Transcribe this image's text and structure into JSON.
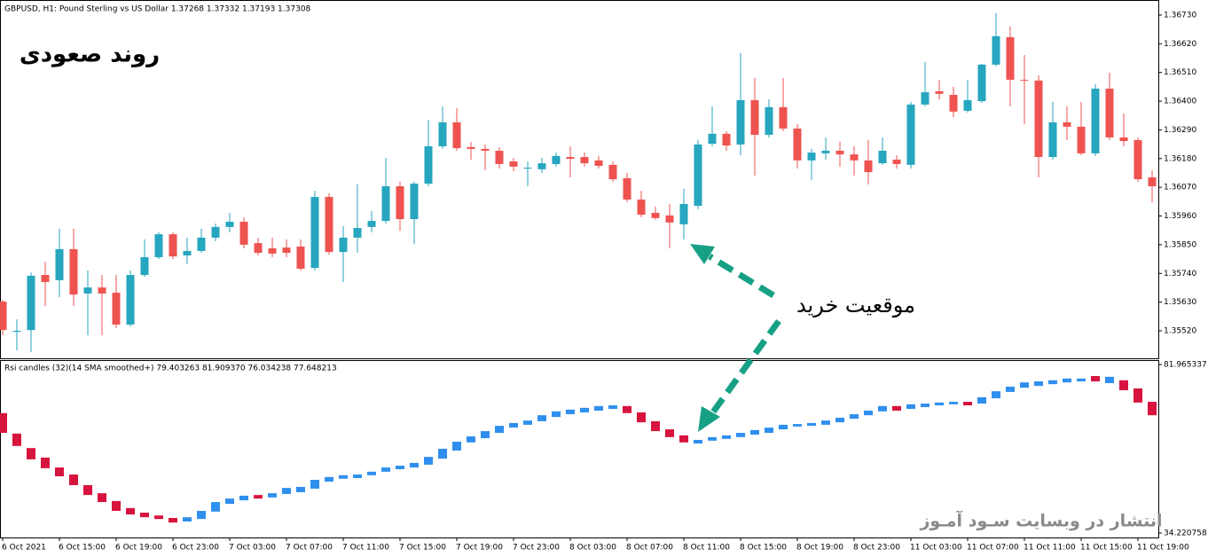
{
  "chart_data": [
    {
      "type": "candlestick",
      "title": "GBPUSD, H1:  Pound Sterling vs US Dollar  1.37268 1.37332 1.37193 1.37308",
      "annotations": [
        "روند صعودی",
        "موقعیت خرید"
      ],
      "up_color": "#26a6bf",
      "down_color": "#ef5350",
      "ylim": [
        1.35418,
        1.36774
      ],
      "yticks": [
        {
          "value": 1.3673,
          "label": "1.36730"
        },
        {
          "value": 1.3662,
          "label": "1.36620"
        },
        {
          "value": 1.3651,
          "label": "1.36510"
        },
        {
          "value": 1.364,
          "label": "1.36400"
        },
        {
          "value": 1.3629,
          "label": "1.36290"
        },
        {
          "value": 1.3618,
          "label": "1.36180"
        },
        {
          "value": 1.3607,
          "label": "1.36070"
        },
        {
          "value": 1.3596,
          "label": "1.35960"
        },
        {
          "value": 1.3585,
          "label": "1.35850"
        },
        {
          "value": 1.3574,
          "label": "1.35740"
        },
        {
          "value": 1.3563,
          "label": "1.35630"
        },
        {
          "value": 1.3552,
          "label": "1.35520"
        }
      ],
      "open": [
        1.35632,
        1.35516,
        1.35523,
        1.35734,
        1.35714,
        1.35833,
        1.35663,
        1.35686,
        1.35666,
        1.35544,
        1.35734,
        1.35802,
        1.3589,
        1.35809,
        1.35826,
        1.35877,
        1.35918,
        1.35938,
        1.35856,
        1.35836,
        1.35839,
        1.35843,
        1.35761,
        1.36033,
        1.35822,
        1.35877,
        1.35918,
        1.35941,
        1.36074,
        1.35948,
        1.36084,
        1.36227,
        1.36319,
        1.36224,
        1.36217,
        1.3621,
        1.36169,
        1.36142,
        1.36139,
        1.36159,
        1.36186,
        1.36186,
        1.36173,
        1.36156,
        1.36105,
        1.36023,
        1.35972,
        1.35962,
        1.35928,
        1.35999,
        1.36237,
        1.36275,
        1.36234,
        1.36404,
        1.36271,
        1.36377,
        1.36295,
        1.36173,
        1.362,
        1.3621,
        1.36196,
        1.36173,
        1.36162,
        1.36176,
        1.36156,
        1.36387,
        1.36438,
        1.36424,
        1.36363,
        1.364,
        1.3654,
        1.36645,
        1.36482,
        1.36479,
        1.36186,
        1.36319,
        1.36302,
        1.362,
        1.36448,
        1.36261,
        1.36251,
        1.36108
      ],
      "high": [
        1.35639,
        1.35564,
        1.35744,
        1.35785,
        1.35911,
        1.35911,
        1.35751,
        1.35734,
        1.35734,
        1.35751,
        1.3587,
        1.35897,
        1.35897,
        1.35877,
        1.35911,
        1.35931,
        1.35972,
        1.35955,
        1.35877,
        1.35877,
        1.3587,
        1.3587,
        1.36057,
        1.36047,
        1.35921,
        1.36081,
        1.35979,
        1.36183,
        1.36091,
        1.36091,
        1.36329,
        1.3638,
        1.36373,
        1.36244,
        1.36234,
        1.36224,
        1.36183,
        1.36169,
        1.36183,
        1.36203,
        1.36227,
        1.36203,
        1.3619,
        1.36169,
        1.36125,
        1.36057,
        1.35996,
        1.36006,
        1.36064,
        1.36251,
        1.3638,
        1.36285,
        1.36584,
        1.36489,
        1.36407,
        1.36489,
        1.36312,
        1.36217,
        1.36261,
        1.36244,
        1.36227,
        1.36251,
        1.36261,
        1.36193,
        1.36397,
        1.3655,
        1.36482,
        1.36455,
        1.36482,
        1.36543,
        1.36737,
        1.36686,
        1.36577,
        1.36499,
        1.36397,
        1.3638,
        1.36397,
        1.36465,
        1.36509,
        1.36353,
        1.36261,
        1.36135
      ],
      "low": [
        1.35503,
        1.35445,
        1.35438,
        1.35615,
        1.35649,
        1.35615,
        1.35503,
        1.35503,
        1.3553,
        1.35537,
        1.35727,
        1.35795,
        1.35795,
        1.35775,
        1.35819,
        1.35863,
        1.35897,
        1.35836,
        1.35809,
        1.35802,
        1.35802,
        1.35751,
        1.35751,
        1.35812,
        1.35707,
        1.35819,
        1.35897,
        1.35931,
        1.35904,
        1.35853,
        1.36074,
        1.36217,
        1.3621,
        1.36176,
        1.36135,
        1.36142,
        1.36132,
        1.36074,
        1.36125,
        1.36149,
        1.36108,
        1.36149,
        1.36142,
        1.36091,
        1.36013,
        1.35955,
        1.35945,
        1.35836,
        1.3587,
        1.35986,
        1.36227,
        1.3621,
        1.36193,
        1.36115,
        1.36261,
        1.36285,
        1.36142,
        1.36098,
        1.36176,
        1.36149,
        1.36115,
        1.36081,
        1.36156,
        1.36142,
        1.36142,
        1.3638,
        1.36407,
        1.36339,
        1.36356,
        1.36394,
        1.36533,
        1.3638,
        1.36312,
        1.36108,
        1.36176,
        1.36251,
        1.36193,
        1.3619,
        1.36251,
        1.36227,
        1.36091,
        1.36013
      ],
      "close": [
        1.35523,
        1.3552,
        1.35731,
        1.35707,
        1.35833,
        1.35659,
        1.35686,
        1.35663,
        1.35544,
        1.35734,
        1.35802,
        1.3589,
        1.35805,
        1.35826,
        1.35877,
        1.35918,
        1.35938,
        1.3585,
        1.35819,
        1.35816,
        1.35819,
        1.35758,
        1.36033,
        1.35822,
        1.35877,
        1.35914,
        1.35941,
        1.36074,
        1.35948,
        1.36084,
        1.36227,
        1.36319,
        1.3622,
        1.36217,
        1.3621,
        1.36159,
        1.36149,
        1.36145,
        1.36162,
        1.3619,
        1.36179,
        1.36162,
        1.36152,
        1.36101,
        1.36023,
        1.35965,
        1.35952,
        1.35935,
        1.36006,
        1.36234,
        1.36275,
        1.3623,
        1.36404,
        1.36271,
        1.36377,
        1.36295,
        1.36173,
        1.36203,
        1.3621,
        1.36196,
        1.36173,
        1.36128,
        1.3621,
        1.36159,
        1.36387,
        1.36434,
        1.36428,
        1.3636,
        1.36404,
        1.3654,
        1.36649,
        1.36482,
        1.36479,
        1.36186,
        1.36319,
        1.36302,
        1.362,
        1.36448,
        1.36261,
        1.36247,
        1.36101,
        1.36074
      ]
    },
    {
      "type": "candlestick",
      "title": "Rsi candles (32)(14 SMA smoothed+) 79.403263 81.909370 76.034238 77.648213",
      "annotation": "انتشار در وبسایت  سـود آمـوز",
      "up_color": "#2f8fee",
      "down_color": "#d7143e",
      "ylim": [
        34.220758,
        81.965337
      ],
      "yticks": [
        81.965337,
        34.220758
      ],
      "categories": [
        "6 Oct 2021",
        null,
        null,
        null,
        "6 Oct 15:00",
        null,
        null,
        null,
        "6 Oct 19:00",
        null,
        null,
        null,
        "6 Oct 23:00",
        null,
        null,
        null,
        "7 Oct 03:00",
        null,
        null,
        null,
        "7 Oct 07:00",
        null,
        null,
        null,
        "7 Oct 11:00",
        null,
        null,
        null,
        "7 Oct 15:00",
        null,
        null,
        null,
        "7 Oct 19:00",
        null,
        null,
        null,
        "7 Oct 23:00",
        null,
        null,
        null,
        "8 Oct 03:00",
        null,
        null,
        null,
        "8 Oct 07:00",
        null,
        null,
        null,
        "8 Oct 11:00",
        null,
        null,
        null,
        "8 Oct 15:00",
        null,
        null,
        null,
        "8 Oct 19:00",
        null,
        null,
        null,
        "8 Oct 23:00",
        null,
        null,
        null,
        "11 Oct 03:00",
        null,
        null,
        null,
        "11 Oct 07:00",
        null,
        null,
        null,
        "11 Oct 11:00",
        null,
        null,
        null,
        "11 Oct 15:00",
        null,
        null,
        null,
        "11 Oct 19:00",
        null
      ],
      "open": [
        68.2,
        62.4,
        58.3,
        55.6,
        52.8,
        50.8,
        47.8,
        45.5,
        43.3,
        41.3,
        40.0,
        39.2,
        38.5,
        37.5,
        38.2,
        40.3,
        42.5,
        43.5,
        45.0,
        44.3,
        45.3,
        45.8,
        46.8,
        48.8,
        49.6,
        49.8,
        50.6,
        51.6,
        52.3,
        52.8,
        53.6,
        55.3,
        57.6,
        59.9,
        61.1,
        62.6,
        64.1,
        64.9,
        65.9,
        67.1,
        67.9,
        68.4,
        68.9,
        69.4,
        70.2,
        68.4,
        65.9,
        63.6,
        61.9,
        59.6,
        60.4,
        60.9,
        61.4,
        62.1,
        62.6,
        63.6,
        64.4,
        64.6,
        64.9,
        65.6,
        66.6,
        67.6,
        68.7,
        70.2,
        69.4,
        69.9,
        70.4,
        70.7,
        71.4,
        70.9,
        72.4,
        74.2,
        75.4,
        75.9,
        76.4,
        76.9,
        77.2,
        78.7,
        76.7,
        77.5,
        75.2,
        71.4
      ],
      "close": [
        62.6,
        58.9,
        55.1,
        52.6,
        50.3,
        47.8,
        45.0,
        43.0,
        40.5,
        39.5,
        38.7,
        38.2,
        37.2,
        38.7,
        40.5,
        43.0,
        44.0,
        44.8,
        44.0,
        45.5,
        47.0,
        47.3,
        49.3,
        50.1,
        50.6,
        50.8,
        51.6,
        52.8,
        53.3,
        54.1,
        55.8,
        58.1,
        60.1,
        61.6,
        63.1,
        64.6,
        65.4,
        66.1,
        67.6,
        68.7,
        69.2,
        69.7,
        70.2,
        70.4,
        68.2,
        65.6,
        63.1,
        61.4,
        59.9,
        60.6,
        61.4,
        61.9,
        62.6,
        63.4,
        64.1,
        64.9,
        65.1,
        65.4,
        66.1,
        66.9,
        67.9,
        68.9,
        70.2,
        68.9,
        70.7,
        70.9,
        71.2,
        71.4,
        70.4,
        72.7,
        74.4,
        75.7,
        76.9,
        77.2,
        77.5,
        78.0,
        78.0,
        77.2,
        78.5,
        74.7,
        71.2,
        67.6
      ]
    }
  ]
}
